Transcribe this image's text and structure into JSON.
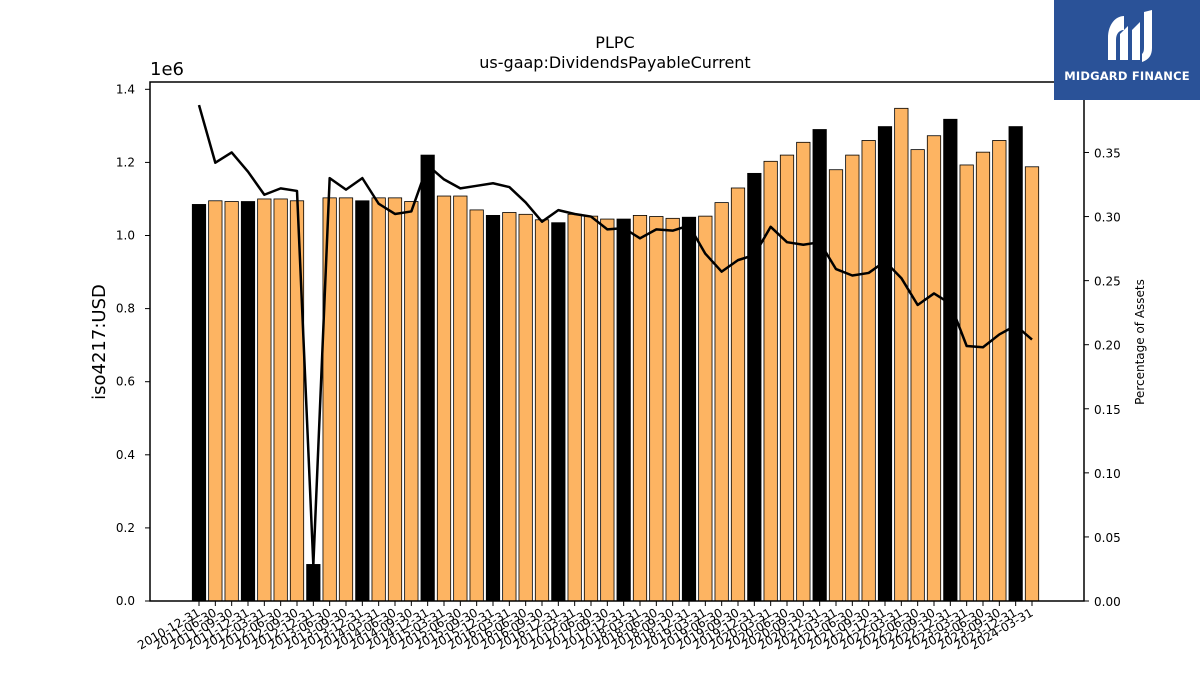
{
  "chart_data": {
    "type": "bar+line",
    "title": "PLPC",
    "subtitle": "us-gaap:DividendsPayableCurrent",
    "ylabel": "iso4217:USD",
    "y_offset_label": "1e6",
    "y2label": "Percentage of Assets",
    "ylim": [
      0,
      1.42
    ],
    "y2lim": [
      0,
      0.405
    ],
    "y_ticks": [
      "0.0",
      "0.2",
      "0.4",
      "0.6",
      "0.8",
      "1.0",
      "1.2",
      "1.4"
    ],
    "y2_ticks": [
      "0.00",
      "0.05",
      "0.10",
      "0.15",
      "0.20",
      "0.25",
      "0.30",
      "0.35"
    ],
    "categories": [
      "2010-12-31",
      "2011-06-30",
      "2011-09-30",
      "2011-12-31",
      "2012-03-31",
      "2012-06-30",
      "2012-09-30",
      "2012-12-31",
      "2013-06-30",
      "2013-09-30",
      "2013-12-31",
      "2014-03-31",
      "2014-06-30",
      "2014-09-30",
      "2014-12-31",
      "2015-03-31",
      "2015-06-30",
      "2015-09-30",
      "2015-12-31",
      "2016-03-31",
      "2016-06-30",
      "2016-09-30",
      "2016-12-31",
      "2017-03-31",
      "2017-06-30",
      "2017-09-30",
      "2017-12-31",
      "2018-03-31",
      "2018-06-30",
      "2018-09-30",
      "2018-12-31",
      "2019-03-31",
      "2019-06-30",
      "2019-09-30",
      "2019-12-31",
      "2020-03-31",
      "2020-06-30",
      "2020-09-30",
      "2020-12-31",
      "2021-03-31",
      "2021-06-30",
      "2021-09-30",
      "2021-12-31",
      "2022-03-31",
      "2022-06-30",
      "2022-09-30",
      "2022-12-31",
      "2023-03-31",
      "2023-06-30",
      "2023-09-30",
      "2023-12-31",
      "2024-03-31"
    ],
    "series": [
      {
        "kind": "bar",
        "values": [
          1.085,
          1.095,
          1.093,
          1.093,
          1.1,
          1.1,
          1.095,
          0.1,
          1.103,
          1.103,
          1.095,
          1.103,
          1.103,
          1.093,
          1.22,
          1.108,
          1.108,
          1.07,
          1.055,
          1.063,
          1.058,
          1.043,
          1.035,
          1.058,
          1.053,
          1.045,
          1.045,
          1.055,
          1.052,
          1.047,
          1.05,
          1.053,
          1.09,
          1.13,
          1.17,
          1.203,
          1.22,
          1.255,
          1.29,
          1.18,
          1.22,
          1.26,
          1.298,
          1.348,
          1.235,
          1.273,
          1.318,
          1.193,
          1.228,
          1.26,
          1.298,
          1.188
        ],
        "highlighted": [
          true,
          false,
          false,
          true,
          false,
          false,
          false,
          true,
          false,
          false,
          true,
          false,
          false,
          false,
          true,
          false,
          false,
          false,
          true,
          false,
          false,
          false,
          true,
          false,
          false,
          false,
          true,
          false,
          false,
          false,
          true,
          false,
          false,
          false,
          true,
          false,
          false,
          false,
          true,
          false,
          false,
          false,
          true,
          false,
          false,
          false,
          true,
          false,
          false,
          false,
          true,
          false
        ],
        "color": "#fdb462",
        "highlight_color": "#000000"
      },
      {
        "kind": "line",
        "axis": "right",
        "values": [
          0.387,
          0.342,
          0.35,
          0.335,
          0.317,
          0.322,
          0.32,
          0.028,
          0.33,
          0.321,
          0.33,
          0.31,
          0.302,
          0.304,
          0.34,
          0.329,
          0.322,
          0.324,
          0.326,
          0.323,
          0.311,
          0.296,
          0.305,
          0.302,
          0.3,
          0.29,
          0.291,
          0.283,
          0.29,
          0.289,
          0.293,
          0.271,
          0.257,
          0.266,
          0.27,
          0.292,
          0.28,
          0.278,
          0.28,
          0.259,
          0.254,
          0.256,
          0.265,
          0.252,
          0.231,
          0.24,
          0.232,
          0.199,
          0.198,
          0.208,
          0.215,
          0.204
        ],
        "color": "#000000"
      }
    ],
    "grid": false,
    "legend": "none"
  },
  "logo": {
    "text": "MIDGARD FINANCE",
    "background": "#2a5298"
  }
}
